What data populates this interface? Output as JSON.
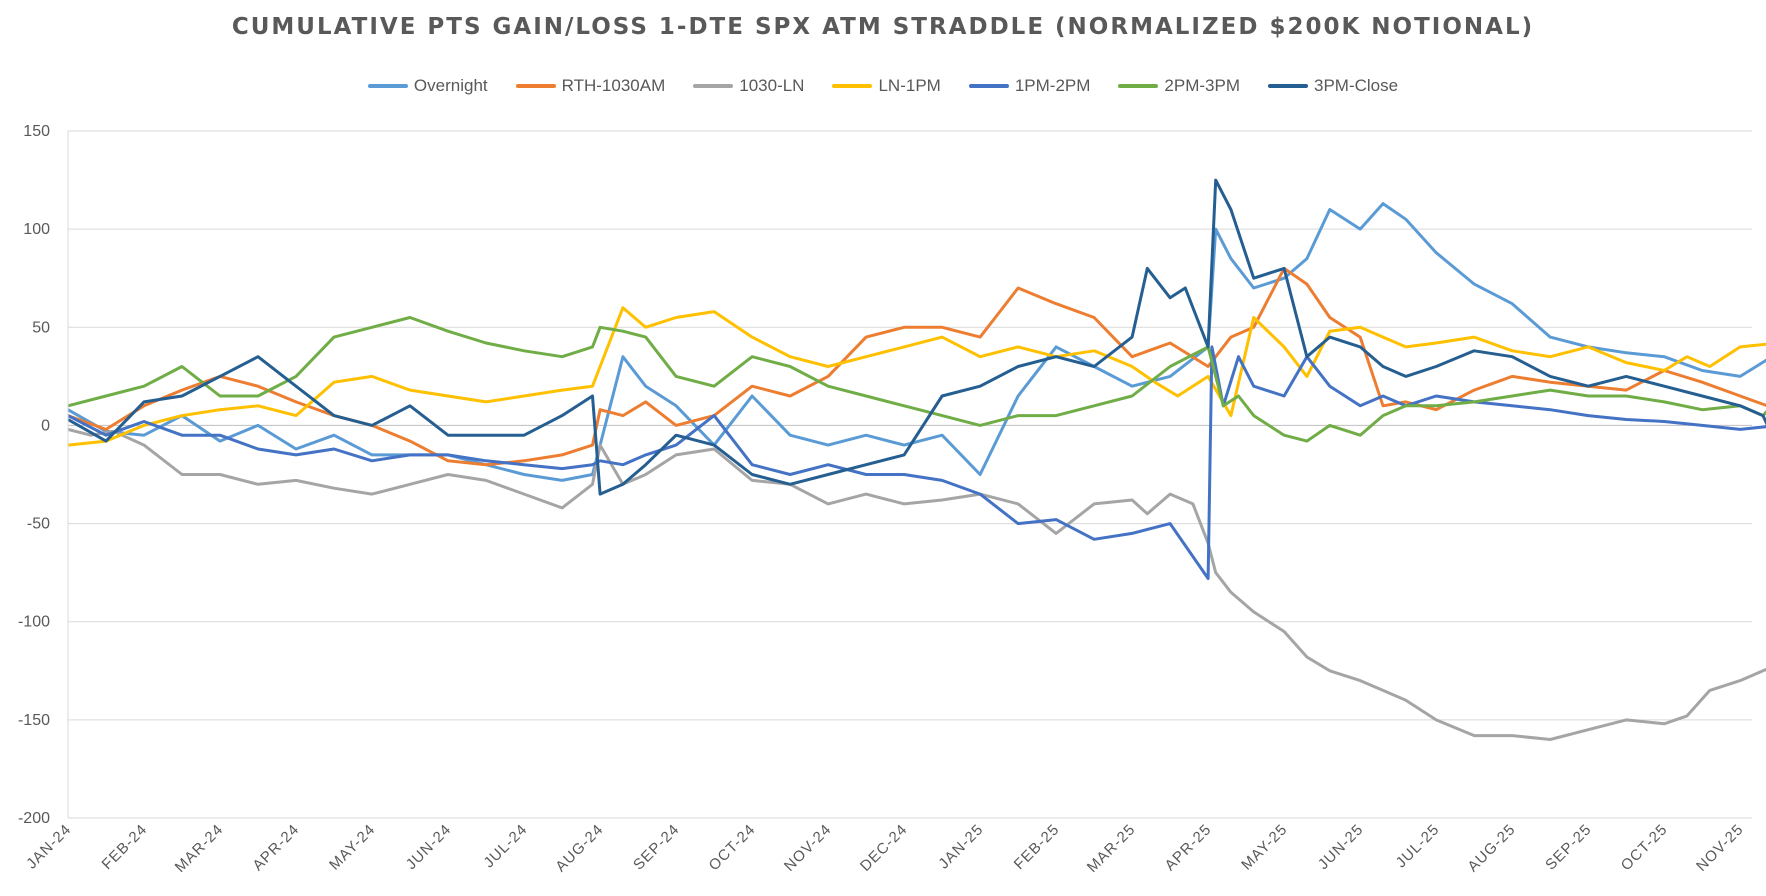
{
  "chart_data": {
    "type": "line",
    "title": "CUMULATIVE PTS GAIN/LOSS 1-DTE SPX ATM STRADDLE (NORMALIZED $200K NOTIONAL)",
    "xlabel": "",
    "ylabel": "",
    "ylim": [
      -200,
      150
    ],
    "yticks": [
      150,
      100,
      50,
      0,
      -50,
      -100,
      -150,
      -200
    ],
    "x_categories": [
      "JAN-24",
      "FEB-24",
      "MAR-24",
      "APR-24",
      "MAY-24",
      "JUN-24",
      "JUL-24",
      "AUG-24",
      "SEP-24",
      "OCT-24",
      "NOV-24",
      "DEC-24",
      "JAN-25",
      "FEB-25",
      "MAR-25",
      "APR-25",
      "MAY-25",
      "JUN-25",
      "JUL-25",
      "AUG-25",
      "SEP-25",
      "OCT-25",
      "NOV-25"
    ],
    "grid": "horizontal",
    "legend_position": "top",
    "series": [
      {
        "name": "Overnight",
        "color": "#5B9BD5",
        "x": [
          0,
          0.5,
          1,
          1.5,
          2,
          2.5,
          3,
          3.5,
          4,
          4.5,
          5,
          5.5,
          6,
          6.5,
          6.9,
          7,
          7.3,
          7.6,
          8,
          8.5,
          9,
          9.5,
          10,
          10.5,
          11,
          11.5,
          12,
          12.5,
          13,
          13.5,
          14,
          14.5,
          15,
          15.1,
          15.3,
          15.6,
          16,
          16.3,
          16.6,
          17,
          17.3,
          17.6,
          18,
          18.5,
          19,
          19.5,
          20,
          20.5,
          21,
          21.5,
          22,
          22.5,
          22.95
        ],
        "values": [
          8,
          -3,
          -5,
          5,
          -8,
          0,
          -12,
          -5,
          -15,
          -15,
          -15,
          -20,
          -25,
          -28,
          -25,
          -10,
          35,
          20,
          10,
          -10,
          15,
          -5,
          -10,
          -5,
          -10,
          -5,
          -25,
          15,
          40,
          30,
          20,
          25,
          40,
          100,
          85,
          70,
          75,
          85,
          110,
          100,
          113,
          105,
          88,
          72,
          62,
          45,
          40,
          37,
          35,
          28,
          25,
          37,
          35
        ]
      },
      {
        "name": "RTH-1030AM",
        "color": "#ED7D31",
        "x": [
          0,
          0.5,
          1,
          1.5,
          2,
          2.5,
          3,
          3.5,
          4,
          4.5,
          5,
          5.5,
          6,
          6.5,
          6.9,
          7,
          7.3,
          7.6,
          8,
          8.5,
          9,
          9.5,
          10,
          10.5,
          11,
          11.5,
          12,
          12.2,
          12.5,
          13,
          13.5,
          14,
          14.5,
          15,
          15.3,
          15.6,
          16,
          16.3,
          16.6,
          17,
          17.3,
          17.6,
          18,
          18.5,
          19,
          19.5,
          20,
          20.5,
          21,
          21.5,
          22,
          22.5,
          22.95
        ],
        "values": [
          5,
          -2,
          10,
          18,
          25,
          20,
          12,
          5,
          0,
          -8,
          -18,
          -20,
          -18,
          -15,
          -10,
          8,
          5,
          12,
          0,
          5,
          20,
          15,
          25,
          45,
          50,
          50,
          45,
          55,
          70,
          62,
          55,
          35,
          42,
          30,
          45,
          50,
          80,
          72,
          55,
          45,
          10,
          12,
          8,
          18,
          25,
          22,
          20,
          18,
          28,
          22,
          15,
          8,
          12
        ]
      },
      {
        "name": "1030-LN",
        "color": "#A5A5A5",
        "x": [
          0,
          0.3,
          0.6,
          1,
          1.5,
          2,
          2.5,
          3,
          3.5,
          4,
          4.5,
          5,
          5.5,
          6,
          6.5,
          6.9,
          7,
          7.3,
          7.6,
          8,
          8.5,
          9,
          9.5,
          10,
          10.5,
          11,
          11.5,
          12,
          12.5,
          13,
          13.5,
          14,
          14.2,
          14.5,
          14.8,
          15,
          15.1,
          15.3,
          15.6,
          16,
          16.3,
          16.6,
          17,
          17.3,
          17.6,
          18,
          18.5,
          19,
          19.5,
          20,
          20.5,
          21,
          21.3,
          21.6,
          22,
          22.3,
          22.6,
          22.8,
          22.95
        ],
        "values": [
          -2,
          -5,
          -3,
          -10,
          -25,
          -25,
          -30,
          -28,
          -32,
          -35,
          -30,
          -25,
          -28,
          -35,
          -42,
          -30,
          -10,
          -30,
          -25,
          -15,
          -12,
          -28,
          -30,
          -40,
          -35,
          -40,
          -38,
          -35,
          -40,
          -55,
          -40,
          -38,
          -45,
          -35,
          -40,
          -60,
          -75,
          -85,
          -95,
          -105,
          -118,
          -125,
          -130,
          -135,
          -140,
          -150,
          -158,
          -158,
          -160,
          -155,
          -150,
          -152,
          -148,
          -135,
          -130,
          -125,
          -120,
          -122,
          -155
        ]
      },
      {
        "name": "LN-1PM",
        "color": "#FFC000",
        "x": [
          0,
          0.5,
          1,
          1.5,
          2,
          2.5,
          3,
          3.5,
          4,
          4.5,
          5,
          5.5,
          6,
          6.5,
          6.9,
          7,
          7.3,
          7.6,
          8,
          8.5,
          9,
          9.5,
          10,
          10.5,
          11,
          11.5,
          12,
          12.5,
          13,
          13.5,
          14,
          14.3,
          14.6,
          15,
          15.3,
          15.6,
          16,
          16.3,
          16.6,
          17,
          17.3,
          17.6,
          18,
          18.5,
          19,
          19.5,
          20,
          20.5,
          21,
          21.3,
          21.6,
          22,
          22.5,
          22.95
        ],
        "values": [
          -10,
          -8,
          0,
          5,
          8,
          10,
          5,
          22,
          25,
          18,
          15,
          12,
          15,
          18,
          20,
          30,
          60,
          50,
          55,
          58,
          45,
          35,
          30,
          35,
          40,
          45,
          35,
          40,
          35,
          38,
          30,
          22,
          15,
          25,
          5,
          55,
          40,
          25,
          48,
          50,
          45,
          40,
          42,
          45,
          38,
          35,
          40,
          32,
          28,
          35,
          30,
          40,
          42,
          44
        ]
      },
      {
        "name": "1PM-2PM",
        "color": "#4472C4",
        "x": [
          0,
          0.5,
          1,
          1.5,
          2,
          2.5,
          3,
          3.5,
          4,
          4.5,
          5,
          5.5,
          6,
          6.5,
          6.9,
          7,
          7.3,
          7.6,
          8,
          8.5,
          9,
          9.5,
          10,
          10.5,
          11,
          11.5,
          12,
          12.5,
          13,
          13.5,
          14,
          14.5,
          15,
          15.05,
          15.2,
          15.4,
          15.6,
          16,
          16.3,
          16.6,
          17,
          17.3,
          17.6,
          18,
          18.5,
          19,
          19.5,
          20,
          20.5,
          21,
          21.5,
          22,
          22.5,
          22.95
        ],
        "values": [
          5,
          -5,
          2,
          -5,
          -5,
          -12,
          -15,
          -12,
          -18,
          -15,
          -15,
          -18,
          -20,
          -22,
          -20,
          -18,
          -20,
          -15,
          -10,
          5,
          -20,
          -25,
          -20,
          -25,
          -25,
          -28,
          -35,
          -50,
          -48,
          -58,
          -55,
          -50,
          -78,
          40,
          10,
          35,
          20,
          15,
          35,
          20,
          10,
          15,
          10,
          15,
          12,
          10,
          8,
          5,
          3,
          2,
          0,
          -2,
          0,
          12
        ]
      },
      {
        "name": "2PM-3PM",
        "color": "#70AD47",
        "x": [
          0,
          0.5,
          1,
          1.5,
          2,
          2.5,
          3,
          3.5,
          4,
          4.5,
          5,
          5.5,
          6,
          6.5,
          6.9,
          7,
          7.3,
          7.6,
          8,
          8.5,
          9,
          9.5,
          10,
          10.5,
          11,
          11.5,
          12,
          12.5,
          13,
          13.5,
          14,
          14.5,
          15,
          15.2,
          15.4,
          15.6,
          16,
          16.3,
          16.6,
          17,
          17.3,
          17.6,
          18,
          18.5,
          19,
          19.5,
          20,
          20.5,
          21,
          21.5,
          22,
          22.3,
          22.6,
          22.95
        ],
        "values": [
          10,
          15,
          20,
          30,
          15,
          15,
          25,
          45,
          50,
          55,
          48,
          42,
          38,
          35,
          40,
          50,
          48,
          45,
          25,
          20,
          35,
          30,
          20,
          15,
          10,
          5,
          0,
          5,
          5,
          10,
          15,
          30,
          40,
          10,
          15,
          5,
          -5,
          -8,
          0,
          -5,
          5,
          10,
          10,
          12,
          15,
          18,
          15,
          15,
          12,
          8,
          10,
          5,
          18,
          0
        ]
      },
      {
        "name": "3PM-Close",
        "color": "#255E91",
        "x": [
          0,
          0.5,
          1,
          1.5,
          2,
          2.5,
          3,
          3.5,
          4,
          4.5,
          5,
          5.5,
          6,
          6.5,
          6.9,
          7,
          7.3,
          7.6,
          8,
          8.5,
          9,
          9.5,
          10,
          10.5,
          11,
          11.5,
          12,
          12.5,
          13,
          13.5,
          14,
          14.2,
          14.5,
          14.7,
          15,
          15.1,
          15.3,
          15.6,
          16,
          16.3,
          16.6,
          17,
          17.3,
          17.6,
          18,
          18.5,
          19,
          19.5,
          20,
          20.5,
          21,
          21.5,
          22,
          22.3,
          22.6,
          22.8,
          22.95
        ],
        "values": [
          3,
          -8,
          12,
          15,
          25,
          35,
          20,
          5,
          0,
          10,
          -5,
          -5,
          -5,
          5,
          15,
          -35,
          -30,
          -20,
          -5,
          -10,
          -25,
          -30,
          -25,
          -20,
          -15,
          15,
          20,
          30,
          35,
          30,
          45,
          80,
          65,
          70,
          40,
          125,
          110,
          75,
          80,
          35,
          45,
          40,
          30,
          25,
          30,
          38,
          35,
          25,
          20,
          25,
          20,
          15,
          10,
          5,
          -20,
          -5,
          -10
        ]
      }
    ]
  }
}
